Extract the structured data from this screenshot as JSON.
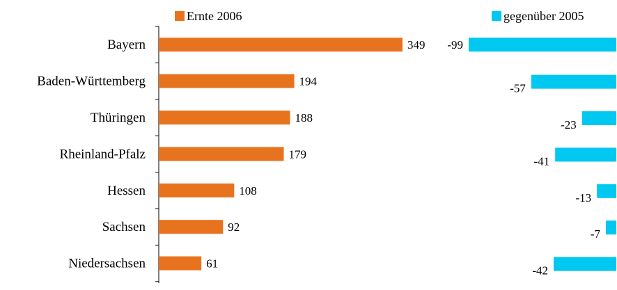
{
  "chart_data": [
    {
      "type": "bar",
      "orientation": "horizontal",
      "categories": [
        "Bayern",
        "Baden-Württemberg",
        "Thüringen",
        "Rheinland-Pfalz",
        "Hessen",
        "Sachsen",
        "Niedersachsen"
      ],
      "series": [
        {
          "name": "Ernte 2006",
          "values": [
            349,
            194,
            188,
            179,
            108,
            92,
            61
          ],
          "color": "#E8731E"
        }
      ],
      "legend": "top"
    },
    {
      "type": "bar",
      "orientation": "horizontal",
      "categories": [
        "Bayern",
        "Baden-Württemberg",
        "Thüringen",
        "Rheinland-Pfalz",
        "Hessen",
        "Sachsen",
        "Niedersachsen"
      ],
      "series": [
        {
          "name": "gegenüber 2005",
          "values": [
            -99,
            -57,
            -23,
            -41,
            -13,
            -7,
            -42
          ],
          "color": "#00C8F0"
        }
      ],
      "legend": "top"
    }
  ]
}
